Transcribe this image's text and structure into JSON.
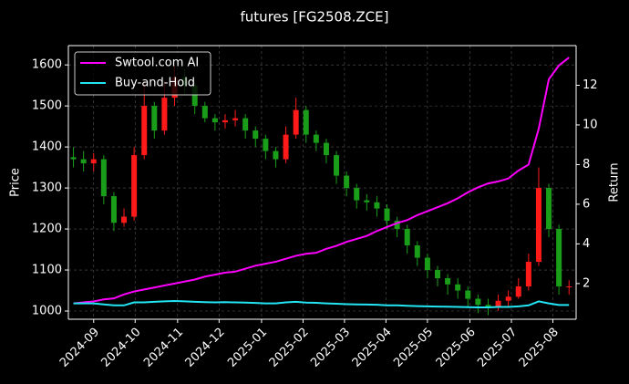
{
  "chart_data": {
    "type": "candlestick",
    "title": "futures [FG2508.ZCE]",
    "y_label": "Price",
    "y2_label": "Return",
    "up_color": "#ff1a1a",
    "down_color": "#1a9e1a",
    "open": [
      1375,
      1370,
      1360,
      1370,
      1280,
      1215,
      1230,
      1380,
      1500,
      1440,
      1520,
      1570,
      1550,
      1500,
      1470,
      1460,
      1465,
      1470,
      1440,
      1420,
      1390,
      1370,
      1430,
      1490,
      1430,
      1410,
      1380,
      1330,
      1300,
      1270,
      1265,
      1250,
      1220,
      1200,
      1160,
      1130,
      1100,
      1080,
      1065,
      1050,
      1030,
      1015,
      1010,
      1025,
      1035,
      1060,
      1120,
      1300,
      1200,
      1060
    ],
    "high": [
      1400,
      1390,
      1385,
      1380,
      1290,
      1250,
      1400,
      1560,
      1510,
      1560,
      1600,
      1590,
      1560,
      1510,
      1480,
      1480,
      1490,
      1480,
      1450,
      1430,
      1400,
      1450,
      1520,
      1500,
      1440,
      1420,
      1390,
      1340,
      1310,
      1285,
      1280,
      1260,
      1230,
      1210,
      1170,
      1140,
      1110,
      1090,
      1080,
      1060,
      1040,
      1030,
      1040,
      1050,
      1080,
      1140,
      1350,
      1310,
      1210,
      1075
    ],
    "low": [
      1350,
      1340,
      1340,
      1260,
      1195,
      1205,
      1220,
      1370,
      1420,
      1430,
      1500,
      1530,
      1480,
      1460,
      1440,
      1445,
      1450,
      1420,
      1400,
      1370,
      1350,
      1360,
      1420,
      1410,
      1390,
      1360,
      1310,
      1280,
      1250,
      1245,
      1230,
      1200,
      1180,
      1140,
      1110,
      1080,
      1060,
      1040,
      1030,
      1010,
      995,
      990,
      1000,
      1010,
      1030,
      1050,
      1110,
      1180,
      1040,
      1040
    ],
    "close": [
      1370,
      1360,
      1370,
      1280,
      1215,
      1230,
      1380,
      1500,
      1440,
      1520,
      1570,
      1550,
      1500,
      1470,
      1460,
      1465,
      1470,
      1440,
      1420,
      1390,
      1370,
      1430,
      1490,
      1430,
      1410,
      1380,
      1330,
      1300,
      1270,
      1265,
      1250,
      1220,
      1200,
      1160,
      1130,
      1100,
      1080,
      1065,
      1050,
      1030,
      1015,
      1010,
      1025,
      1035,
      1060,
      1120,
      1300,
      1200,
      1060,
      1060
    ],
    "series": [
      {
        "name": "Swtool.com AI",
        "color": "#ff00ff",
        "axis": "y2",
        "values": [
          1.0,
          1.05,
          1.1,
          1.2,
          1.25,
          1.45,
          1.6,
          1.7,
          1.8,
          1.9,
          2.0,
          2.1,
          2.2,
          2.35,
          2.45,
          2.55,
          2.6,
          2.75,
          2.9,
          3.0,
          3.1,
          3.25,
          3.4,
          3.5,
          3.55,
          3.75,
          3.9,
          4.1,
          4.25,
          4.4,
          4.65,
          4.85,
          5.05,
          5.2,
          5.45,
          5.65,
          5.85,
          6.05,
          6.3,
          6.6,
          6.85,
          7.05,
          7.15,
          7.3,
          7.7,
          8.0,
          9.8,
          12.3,
          13.0,
          13.4
        ]
      },
      {
        "name": "Buy-and-Hold",
        "color": "#22e4f2",
        "axis": "y2",
        "values": [
          1.0,
          1.0,
          1.0,
          0.95,
          0.9,
          0.9,
          1.05,
          1.05,
          1.08,
          1.1,
          1.12,
          1.1,
          1.08,
          1.06,
          1.05,
          1.06,
          1.05,
          1.04,
          1.02,
          1.0,
          1.0,
          1.05,
          1.08,
          1.04,
          1.03,
          1.0,
          0.98,
          0.96,
          0.95,
          0.94,
          0.93,
          0.9,
          0.9,
          0.88,
          0.86,
          0.85,
          0.84,
          0.83,
          0.82,
          0.81,
          0.8,
          0.8,
          0.82,
          0.82,
          0.85,
          0.9,
          1.1,
          1.0,
          0.92,
          0.92
        ]
      }
    ],
    "xlim": [
      -0.5,
      49.7
    ],
    "xticks": [
      {
        "value": 2.0,
        "label": "2024-09"
      },
      {
        "value": 6.1,
        "label": "2024-10"
      },
      {
        "value": 10.3,
        "label": "2024-11"
      },
      {
        "value": 14.4,
        "label": "2024-12"
      },
      {
        "value": 18.6,
        "label": "2025-01"
      },
      {
        "value": 22.7,
        "label": "2025-02"
      },
      {
        "value": 26.8,
        "label": "2025-03"
      },
      {
        "value": 30.9,
        "label": "2025-04"
      },
      {
        "value": 35.0,
        "label": "2025-05"
      },
      {
        "value": 39.2,
        "label": "2025-06"
      },
      {
        "value": 43.3,
        "label": "2025-07"
      },
      {
        "value": 47.4,
        "label": "2025-08"
      }
    ],
    "ylim": [
      980,
      1647
    ],
    "yticks": [
      1000,
      1100,
      1200,
      1300,
      1400,
      1500,
      1600
    ],
    "y2lim": [
      0.2,
      14.0
    ],
    "y2ticks": [
      2,
      4,
      6,
      8,
      10,
      12
    ],
    "grid": true,
    "legend": "upper-left"
  }
}
